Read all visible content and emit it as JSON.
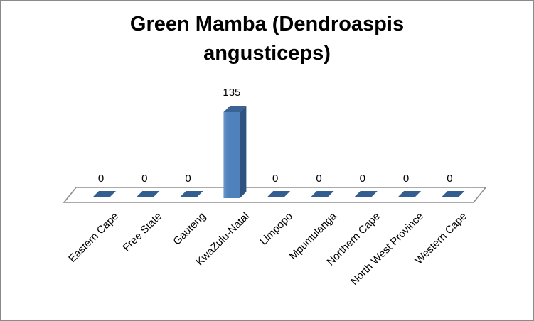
{
  "chart_data": {
    "type": "bar",
    "style": "3d-column",
    "title": "Green Mamba (Dendroaspis angusticeps)",
    "categories": [
      "Eastern Cape",
      "Free State",
      "Gauteng",
      "KwaZulu-Natal",
      "Limpopo",
      "Mpumulanga",
      "Northern Cape",
      "North West Province",
      "Western Cape"
    ],
    "values": [
      0,
      0,
      0,
      135,
      0,
      0,
      0,
      0,
      0
    ],
    "data_labels": [
      "0",
      "0",
      "0",
      "135",
      "0",
      "0",
      "0",
      "0",
      "0"
    ],
    "xlabel": "",
    "ylabel": "",
    "legend": "none",
    "gridlines": false,
    "axes_visible": false,
    "colors": {
      "bar_front": "#4F81BD",
      "bar_front_highlight": "#6E97C8",
      "bar_side": "#2E5380",
      "bar_top": "#3A6394",
      "zero_marker": "#335E90",
      "floor_fill": "#FFFFFF",
      "floor_stroke": "#8E8E8E",
      "text": "#000000",
      "frame_border": "#8A8A8A"
    }
  }
}
